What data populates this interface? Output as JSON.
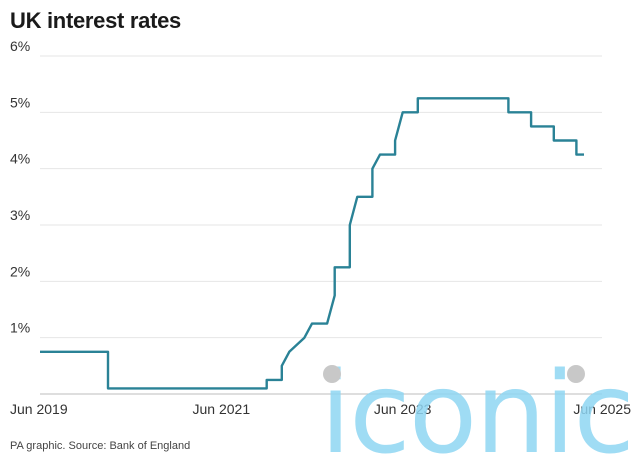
{
  "title": "UK interest rates",
  "source": "PA graphic. Source: Bank of England",
  "watermark": {
    "text": "iconic"
  },
  "chart_data": {
    "type": "line",
    "title": "UK interest rates",
    "xlabel": "",
    "ylabel": "",
    "ylim": [
      0,
      6
    ],
    "xlim": [
      "2019-06",
      "2025-06"
    ],
    "y_ticks": [
      {
        "value": 6,
        "label": "6%"
      },
      {
        "value": 5,
        "label": "5%"
      },
      {
        "value": 4,
        "label": "4%"
      },
      {
        "value": 3,
        "label": "3%"
      },
      {
        "value": 2,
        "label": "2%"
      },
      {
        "value": 1,
        "label": "1%"
      }
    ],
    "x_ticks": [
      {
        "value": "2019-06",
        "label": "Jun 2019"
      },
      {
        "value": "2021-06",
        "label": "Jun 2021"
      },
      {
        "value": "2023-06",
        "label": "Jun 2023"
      },
      {
        "value": "2025-06",
        "label": "Jun 2025"
      }
    ],
    "grid": true,
    "series": [
      {
        "color": "#2a8296",
        "points": [
          [
            "2019-06",
            0.75
          ],
          [
            "2020-03",
            0.75
          ],
          [
            "2020-03",
            0.1
          ],
          [
            "2021-12",
            0.1
          ],
          [
            "2021-12",
            0.25
          ],
          [
            "2022-02",
            0.25
          ],
          [
            "2022-02",
            0.5
          ],
          [
            "2022-03",
            0.75
          ],
          [
            "2022-05",
            1.0
          ],
          [
            "2022-06",
            1.25
          ],
          [
            "2022-08",
            1.25
          ],
          [
            "2022-09",
            1.75
          ],
          [
            "2022-09",
            2.25
          ],
          [
            "2022-11",
            2.25
          ],
          [
            "2022-11",
            3.0
          ],
          [
            "2022-12",
            3.5
          ],
          [
            "2023-02",
            3.5
          ],
          [
            "2023-02",
            4.0
          ],
          [
            "2023-03",
            4.25
          ],
          [
            "2023-05",
            4.25
          ],
          [
            "2023-05",
            4.5
          ],
          [
            "2023-06",
            5.0
          ],
          [
            "2023-08",
            5.0
          ],
          [
            "2023-08",
            5.25
          ],
          [
            "2024-08",
            5.25
          ],
          [
            "2024-08",
            5.0
          ],
          [
            "2024-11",
            5.0
          ],
          [
            "2024-11",
            4.75
          ],
          [
            "2025-02",
            4.75
          ],
          [
            "2025-02",
            4.5
          ],
          [
            "2025-05",
            4.5
          ],
          [
            "2025-05",
            4.25
          ],
          [
            "2025-06",
            4.25
          ]
        ]
      }
    ]
  }
}
